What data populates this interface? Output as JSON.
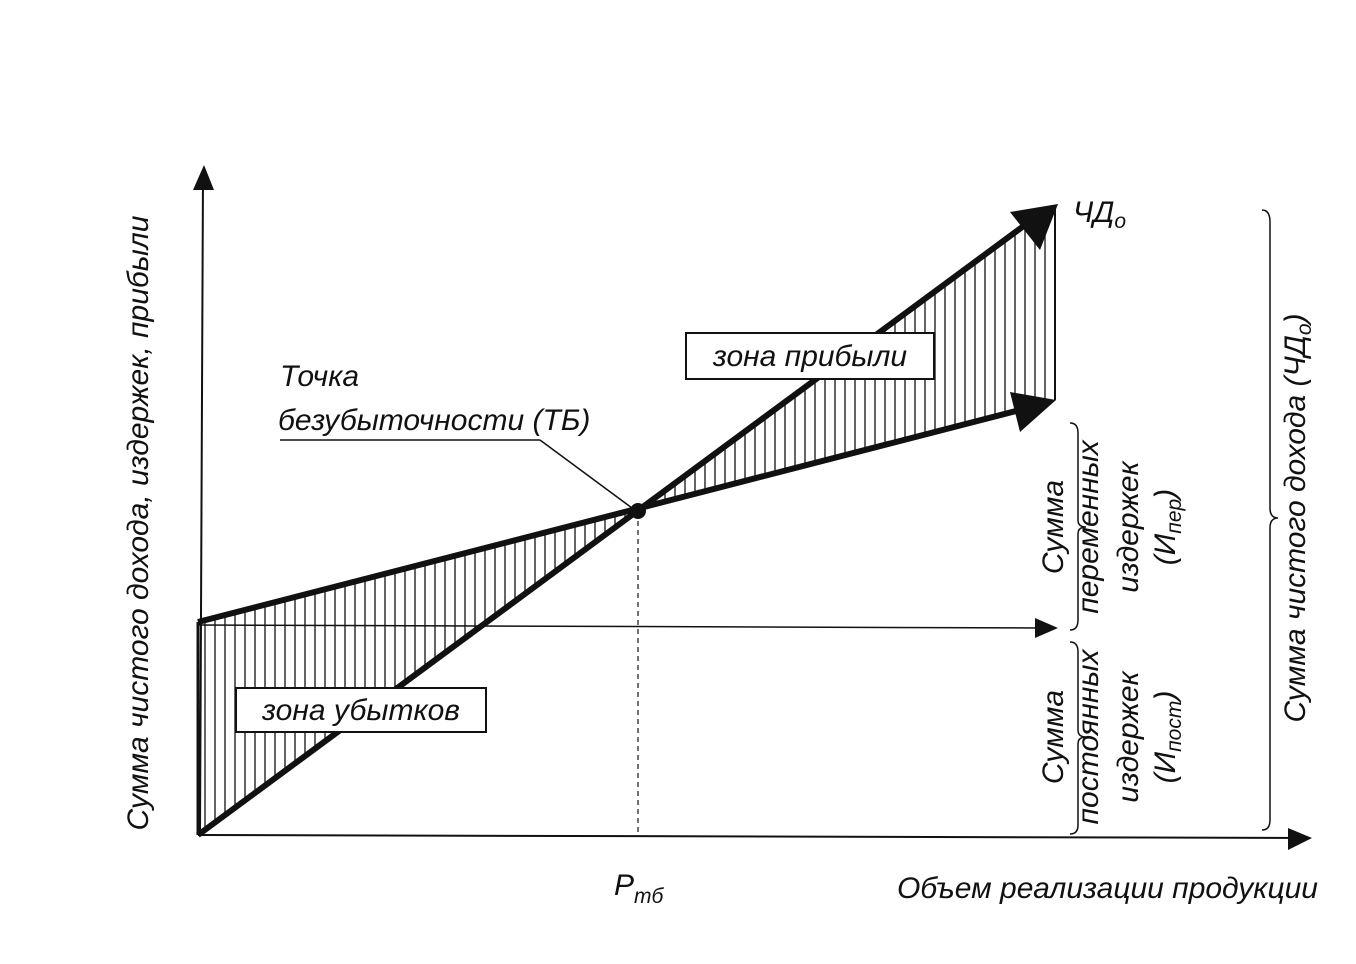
{
  "axes": {
    "y_label": "Сумма чистого дохода, издержек, прибыли",
    "x_label": "Объем реализации продукции"
  },
  "labels": {
    "revenue_line": {
      "text": "ЧД",
      "sub": "о"
    },
    "profit_zone": "зона прибыли",
    "loss_zone": "зона убытков",
    "break_even_point": [
      "Точка",
      "безубыточности (ТБ)"
    ],
    "break_even_volume": {
      "text": "Р",
      "sub": "тб"
    }
  },
  "brackets": {
    "variable_costs": {
      "lines": [
        "Сумма",
        "переменных",
        "издержек"
      ],
      "symbol": {
        "open": "(И",
        "sub": "пер",
        "close": ")"
      }
    },
    "fixed_costs": {
      "lines": [
        "Сумма",
        "постоянных",
        "издержек"
      ],
      "symbol": {
        "open": "(И",
        "sub": "пост",
        "close": ")"
      }
    },
    "net_revenue": {
      "text": "Сумма чистого дохода (ЧД",
      "sub": "о",
      "close": ")"
    }
  }
}
